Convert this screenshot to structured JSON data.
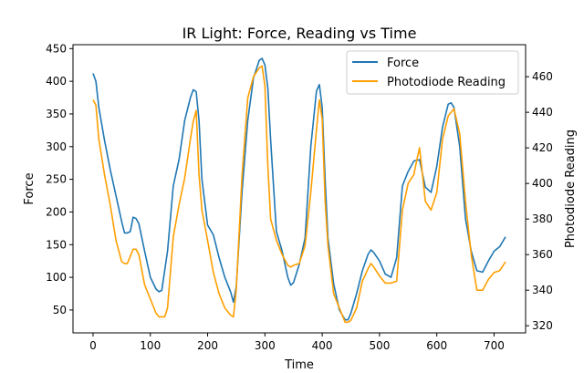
{
  "chart_data": {
    "type": "line",
    "title": "IR Light: Force, Reading vs Time",
    "xlabel": "Time",
    "ylabel_left": "Force",
    "ylabel_right": "Photodiode Reading",
    "xlim": [
      -35,
      755
    ],
    "ylim_left": [
      15,
      456
    ],
    "ylim_right": [
      316,
      478
    ],
    "x_ticks": [
      0,
      100,
      200,
      300,
      400,
      500,
      600,
      700
    ],
    "y_left_ticks": [
      50,
      100,
      150,
      200,
      250,
      300,
      350,
      400,
      450
    ],
    "y_right_ticks": [
      320,
      340,
      360,
      380,
      400,
      420,
      440,
      460
    ],
    "grid": false,
    "legend_position": "top-right",
    "series": [
      {
        "name": "Force",
        "axis": "left",
        "color": "#1f77b4",
        "x": [
          0,
          5,
          10,
          20,
          30,
          40,
          50,
          55,
          60,
          65,
          70,
          75,
          80,
          90,
          100,
          110,
          115,
          120,
          130,
          140,
          150,
          160,
          170,
          175,
          180,
          185,
          190,
          200,
          210,
          220,
          230,
          240,
          245,
          250,
          260,
          270,
          280,
          290,
          295,
          300,
          305,
          310,
          320,
          330,
          340,
          345,
          350,
          360,
          370,
          380,
          390,
          395,
          400,
          405,
          410,
          420,
          430,
          440,
          445,
          450,
          460,
          470,
          480,
          485,
          490,
          500,
          510,
          520,
          530,
          540,
          550,
          560,
          570,
          580,
          590,
          600,
          610,
          620,
          625,
          630,
          640,
          650,
          660,
          670,
          680,
          690,
          700,
          710,
          720
        ],
        "values": [
          412,
          400,
          360,
          310,
          265,
          225,
          185,
          168,
          168,
          170,
          192,
          190,
          182,
          140,
          100,
          82,
          78,
          80,
          140,
          240,
          280,
          340,
          375,
          387,
          384,
          340,
          250,
          180,
          165,
          130,
          100,
          78,
          62,
          85,
          230,
          340,
          405,
          432,
          435,
          425,
          390,
          310,
          170,
          140,
          100,
          88,
          92,
          120,
          160,
          300,
          385,
          395,
          360,
          250,
          160,
          90,
          50,
          35,
          35,
          45,
          75,
          110,
          135,
          142,
          138,
          125,
          105,
          100,
          130,
          240,
          262,
          278,
          280,
          238,
          230,
          270,
          330,
          365,
          367,
          360,
          300,
          190,
          140,
          110,
          108,
          125,
          140,
          147,
          162
        ]
      },
      {
        "name": "Photodiode Reading",
        "axis": "right",
        "color": "#ff9f00",
        "x": [
          0,
          5,
          10,
          20,
          30,
          40,
          50,
          55,
          60,
          70,
          75,
          80,
          90,
          100,
          110,
          115,
          120,
          125,
          130,
          140,
          150,
          160,
          170,
          175,
          180,
          185,
          190,
          200,
          210,
          220,
          230,
          240,
          245,
          250,
          260,
          270,
          280,
          290,
          295,
          300,
          305,
          310,
          320,
          330,
          340,
          345,
          350,
          360,
          370,
          380,
          390,
          395,
          400,
          405,
          410,
          420,
          430,
          440,
          445,
          450,
          460,
          470,
          480,
          485,
          490,
          500,
          510,
          520,
          530,
          540,
          550,
          560,
          565,
          570,
          575,
          580,
          590,
          600,
          610,
          620,
          625,
          630,
          640,
          650,
          660,
          670,
          680,
          690,
          700,
          710,
          720
        ],
        "values": [
          447,
          444,
          425,
          405,
          388,
          368,
          356,
          355,
          355,
          363,
          363,
          360,
          343,
          335,
          327,
          325,
          325,
          325,
          330,
          370,
          388,
          403,
          425,
          435,
          441,
          405,
          385,
          368,
          350,
          338,
          330,
          326,
          325,
          340,
          404,
          448,
          460,
          465,
          466,
          455,
          410,
          380,
          368,
          360,
          354,
          353,
          354,
          355,
          365,
          395,
          430,
          447,
          436,
          390,
          365,
          338,
          330,
          322,
          322,
          323,
          330,
          345,
          352,
          355,
          353,
          348,
          344,
          344,
          345,
          385,
          400,
          405,
          413,
          420,
          405,
          390,
          385,
          395,
          425,
          438,
          440,
          442,
          428,
          390,
          360,
          340,
          340,
          346,
          350,
          351,
          356
        ]
      }
    ]
  }
}
